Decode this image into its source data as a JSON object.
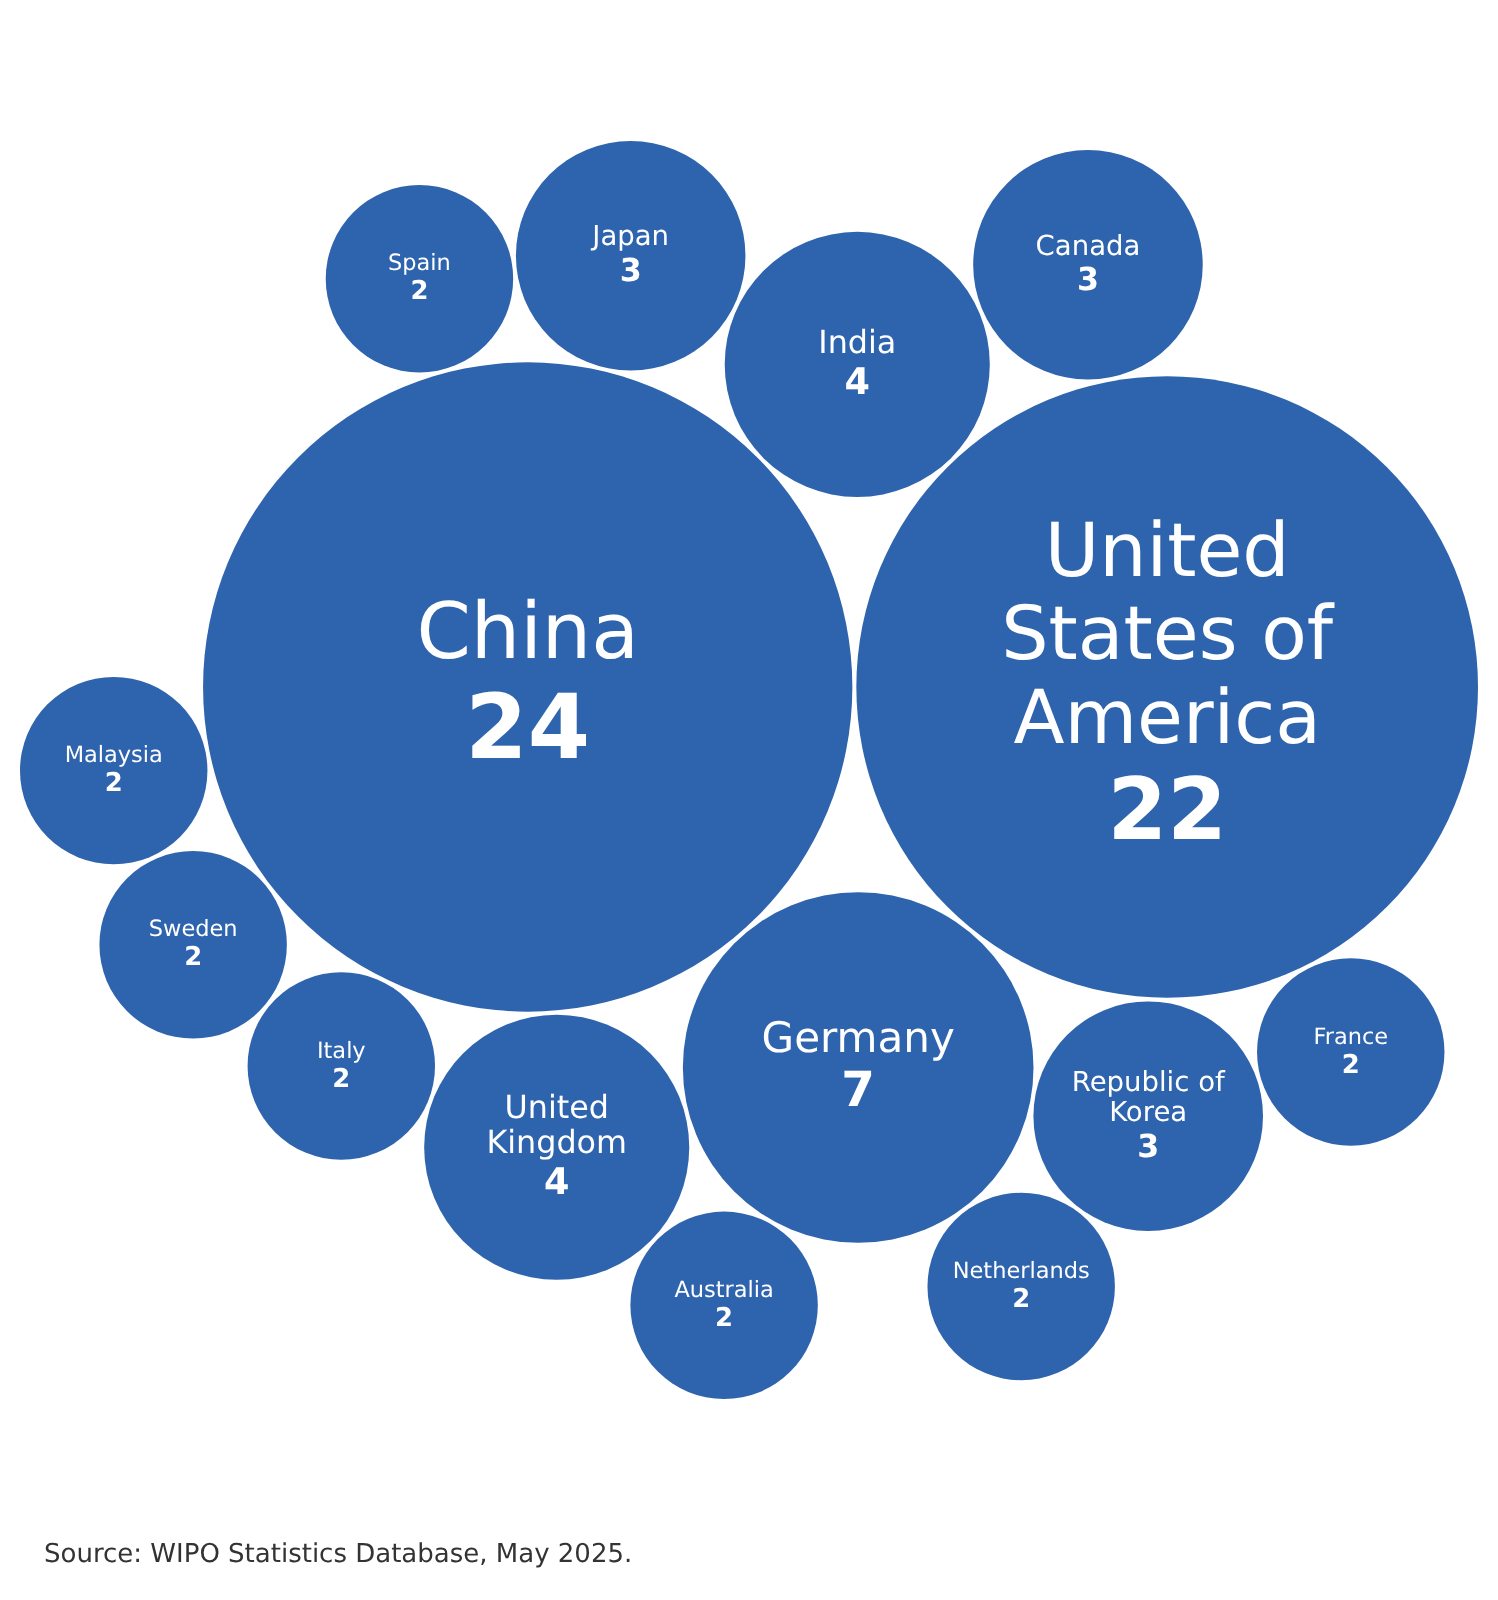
{
  "chart_data": {
    "type": "other",
    "categories": [
      "China",
      "United States of America",
      "Germany",
      "India",
      "United Kingdom",
      "Republic of Korea",
      "Japan",
      "Canada",
      "Italy",
      "France",
      "Netherlands",
      "Australia",
      "Sweden",
      "Spain",
      "Malaysia"
    ],
    "values": [
      24,
      22,
      7,
      4,
      4,
      3,
      3,
      3,
      2,
      2,
      2,
      2,
      2,
      2,
      2
    ],
    "color": "#2e63ad",
    "data_labels": true,
    "annotations": [
      "Source: WIPO Statistics Database, May 2025."
    ]
  }
}
